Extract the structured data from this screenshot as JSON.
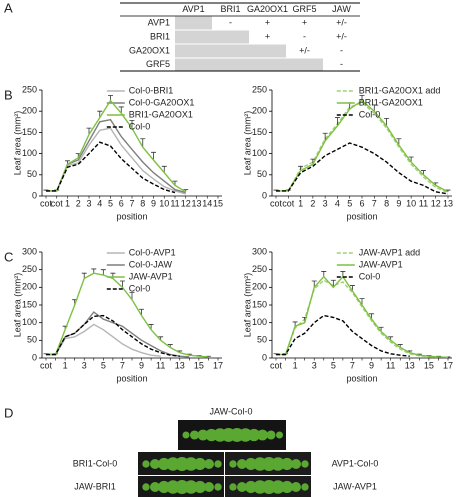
{
  "panel_labels": [
    "A",
    "B",
    "C",
    "D"
  ],
  "table": {
    "columns": [
      "AVP1",
      "BRI1",
      "GA20OX1",
      "GRF5",
      "JAW"
    ],
    "rows": [
      {
        "label": "AVP1",
        "cells": [
          "-",
          "+",
          "+",
          "+/-"
        ]
      },
      {
        "label": "BRI1",
        "cells": [
          "+",
          "-",
          "+/-"
        ]
      },
      {
        "label": "GA20OX1",
        "cells": [
          "+/-",
          "-"
        ]
      },
      {
        "label": "GRF5",
        "cells": [
          "-"
        ]
      }
    ]
  },
  "chart_data": [
    {
      "type": "line",
      "y_label": "Leaf area (mm²)",
      "x_label": "position",
      "categories": [
        "cot",
        "cot",
        "1",
        "2",
        "3",
        "4",
        "5",
        "6",
        "7",
        "8",
        "9",
        "10",
        "11",
        "12",
        "13",
        "14",
        "15"
      ],
      "ylim": [
        0,
        250
      ],
      "yticks": [
        0,
        50,
        100,
        150,
        200,
        250
      ],
      "series": [
        {
          "name": "Col-0-BRI1",
          "color": "#b5b5b5",
          "dashed": false,
          "values": [
            12,
            12,
            72,
            78,
            120,
            155,
            160,
            120,
            90,
            60,
            40,
            22,
            12,
            5,
            null,
            null,
            null
          ]
        },
        {
          "name": "Col-0-GA20OX1",
          "color": "#7f7f7f",
          "dashed": false,
          "values": [
            12,
            12,
            75,
            85,
            130,
            175,
            180,
            140,
            110,
            80,
            55,
            35,
            15,
            8,
            null,
            null,
            null
          ]
        },
        {
          "name": "BRI1-GA20OX1",
          "color": "#7dc142",
          "dashed": false,
          "values": [
            12,
            12,
            75,
            90,
            145,
            185,
            225,
            195,
            160,
            115,
            85,
            55,
            25,
            10,
            null,
            null,
            null
          ],
          "errors": [
            2,
            2,
            8,
            10,
            15,
            15,
            12,
            15,
            18,
            20,
            18,
            15,
            10,
            5,
            null,
            null,
            null
          ]
        },
        {
          "name": "Col-0",
          "color": "#000000",
          "dashed": true,
          "values": [
            12,
            12,
            68,
            75,
            100,
            127,
            118,
            88,
            65,
            42,
            28,
            15,
            8,
            null,
            null,
            null,
            null
          ]
        }
      ]
    },
    {
      "type": "line",
      "y_label": "Leaf area (mm²)",
      "x_label": "position",
      "categories": [
        "cot",
        "cot",
        "1",
        "2",
        "3",
        "4",
        "5",
        "6",
        "7",
        "8",
        "9",
        "10",
        "11",
        "12",
        "13"
      ],
      "ylim": [
        0,
        250
      ],
      "yticks": [
        0,
        50,
        100,
        150,
        200,
        250
      ],
      "series": [
        {
          "name": "BRI1-GA20OX1 add",
          "color": "#9fd273",
          "dashed": true,
          "values": [
            12,
            12,
            65,
            80,
            135,
            170,
            210,
            220,
            195,
            160,
            115,
            75,
            45,
            20,
            8
          ]
        },
        {
          "name": "BRI1-GA20OX1",
          "color": "#7dc142",
          "dashed": false,
          "values": [
            12,
            12,
            60,
            75,
            130,
            165,
            205,
            225,
            200,
            165,
            120,
            80,
            50,
            25,
            10
          ],
          "errors": [
            2,
            2,
            10,
            12,
            18,
            20,
            15,
            12,
            15,
            18,
            15,
            12,
            10,
            6,
            4
          ]
        },
        {
          "name": "Col-0",
          "color": "#000000",
          "dashed": true,
          "values": [
            12,
            12,
            55,
            70,
            95,
            110,
            125,
            115,
            100,
            80,
            55,
            35,
            25,
            10,
            5
          ]
        }
      ]
    },
    {
      "type": "line",
      "y_label": "Leaf area (mm²)",
      "x_label": "position",
      "categories": [
        "cot",
        null,
        "1",
        null,
        "3",
        null,
        "5",
        null,
        "7",
        null,
        "9",
        null,
        "11",
        null,
        "13",
        null,
        "15",
        null,
        "17"
      ],
      "ylim": [
        0,
        300
      ],
      "yticks": [
        0,
        50,
        100,
        150,
        200,
        250,
        300
      ],
      "series": [
        {
          "name": "Col-0-AVP1",
          "color": "#b5b5b5",
          "dashed": false,
          "values": [
            10,
            10,
            55,
            60,
            75,
            95,
            80,
            60,
            40,
            25,
            15,
            8,
            5,
            null,
            null,
            null,
            null,
            null,
            null
          ]
        },
        {
          "name": "Col-0-JAW",
          "color": "#7f7f7f",
          "dashed": false,
          "values": [
            10,
            10,
            60,
            70,
            95,
            130,
            110,
            100,
            90,
            70,
            50,
            35,
            20,
            10,
            5,
            3,
            null,
            null,
            null
          ]
        },
        {
          "name": "JAW-AVP1",
          "color": "#7dc142",
          "dashed": false,
          "values": [
            10,
            10,
            80,
            150,
            225,
            240,
            235,
            225,
            200,
            165,
            120,
            80,
            50,
            30,
            15,
            8,
            5,
            3,
            null
          ],
          "errors": [
            2,
            2,
            10,
            15,
            15,
            12,
            15,
            15,
            18,
            20,
            18,
            15,
            10,
            8,
            5,
            3,
            2,
            2,
            null
          ]
        },
        {
          "name": "Col-0",
          "color": "#000000",
          "dashed": true,
          "values": [
            10,
            10,
            60,
            70,
            95,
            118,
            120,
            105,
            80,
            60,
            40,
            25,
            15,
            8,
            5,
            null,
            null,
            null,
            null
          ]
        }
      ]
    },
    {
      "type": "line",
      "y_label": "Leaf area (mm²)",
      "x_label": "position",
      "categories": [
        "cot",
        null,
        "1",
        null,
        "3",
        null,
        "5",
        null,
        "7",
        null,
        "9",
        null,
        "11",
        null,
        "13",
        null,
        "15",
        null,
        "17"
      ],
      "ylim": [
        0,
        300
      ],
      "yticks": [
        0,
        50,
        100,
        150,
        200,
        250,
        300
      ],
      "series": [
        {
          "name": "JAW-AVP1 add",
          "color": "#9fd273",
          "dashed": true,
          "values": [
            10,
            10,
            85,
            110,
            195,
            220,
            205,
            215,
            185,
            145,
            105,
            70,
            45,
            25,
            12,
            6,
            4,
            2,
            null
          ]
        },
        {
          "name": "JAW-AVP1",
          "color": "#7dc142",
          "dashed": false,
          "values": [
            10,
            10,
            90,
            100,
            200,
            230,
            200,
            230,
            190,
            150,
            110,
            75,
            50,
            30,
            15,
            8,
            5,
            3,
            2
          ],
          "errors": [
            2,
            2,
            12,
            15,
            18,
            15,
            20,
            15,
            15,
            18,
            15,
            12,
            10,
            8,
            5,
            3,
            2,
            2,
            1
          ]
        },
        {
          "name": "Col-0",
          "color": "#000000",
          "dashed": true,
          "values": [
            10,
            10,
            55,
            70,
            100,
            120,
            115,
            105,
            75,
            55,
            35,
            20,
            12,
            8,
            5,
            null,
            null,
            null,
            null
          ]
        }
      ]
    }
  ],
  "photos": {
    "labels": [
      "JAW-Col-0",
      "BRI1-Col-0",
      "AVP1-Col-0",
      "JAW-BRI1",
      "JAW-AVP1"
    ]
  }
}
